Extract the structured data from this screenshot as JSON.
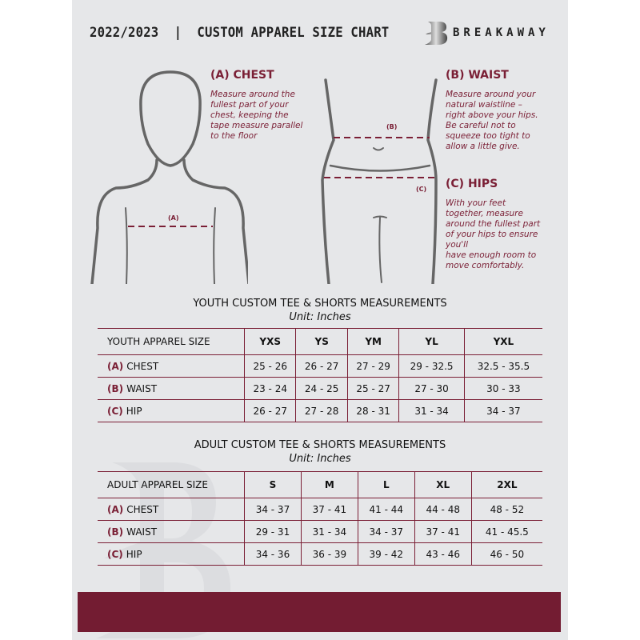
{
  "header": {
    "title": "2022/2023  |  CUSTOM APPAREL SIZE CHART",
    "brand": "BREAKAWAY",
    "logo_letter": "B"
  },
  "colors": {
    "accent": "#7a1f35",
    "background": "#e6e7e9",
    "footer_band": "#731c32"
  },
  "guide": {
    "chest": {
      "heading": "(A) CHEST",
      "text": [
        "Measure around the",
        "fullest part of your",
        "chest, keeping the",
        "tape measure parallel",
        "to the floor"
      ],
      "marker": "(A)"
    },
    "waist": {
      "heading": "(B) WAIST",
      "text": [
        "Measure around your",
        "natural waistline –",
        "right above your hips.",
        "Be careful not to",
        "squeeze too tight to",
        "allow a little give."
      ],
      "marker": "(B)"
    },
    "hips": {
      "heading": "(C) HIPS",
      "text": [
        "With your feet",
        "together, measure",
        "around the fullest part",
        "of your hips to ensure",
        "you'll",
        "have enough room to",
        "move comfortably."
      ],
      "marker": "(C)"
    }
  },
  "youth": {
    "title": "YOUTH CUSTOM TEE & SHORTS MEASUREMENTS",
    "unit": "Unit: Inches",
    "header": [
      "YOUTH APPAREL SIZE",
      "YXS",
      "YS",
      "YM",
      "YL",
      "YXL"
    ],
    "rows": [
      {
        "code": "(A)",
        "label": "CHEST",
        "values": [
          "25 - 26",
          "26 - 27",
          "27 - 29",
          "29 - 32.5",
          "32.5 - 35.5"
        ]
      },
      {
        "code": "(B)",
        "label": "WAIST",
        "values": [
          "23 - 24",
          "24 - 25",
          "25 - 27",
          "27 - 30",
          "30 - 33"
        ]
      },
      {
        "code": "(C)",
        "label": "HIP",
        "values": [
          "26 - 27",
          "27 - 28",
          "28 - 31",
          "31 - 34",
          "34 - 37"
        ]
      }
    ]
  },
  "adult": {
    "title": "ADULT CUSTOM TEE & SHORTS MEASUREMENTS",
    "unit": "Unit: Inches",
    "header": [
      "ADULT APPAREL SIZE",
      "S",
      "M",
      "L",
      "XL",
      "2XL"
    ],
    "rows": [
      {
        "code": "(A)",
        "label": "CHEST",
        "values": [
          "34 - 37",
          "37 - 41",
          "41 - 44",
          "44 - 48",
          "48 - 52"
        ]
      },
      {
        "code": "(B)",
        "label": "WAIST",
        "values": [
          "29 - 31",
          "31 - 34",
          "34 - 37",
          "37 - 41",
          "41 - 45.5"
        ]
      },
      {
        "code": "(C)",
        "label": "HIP",
        "values": [
          "34 - 36",
          "36 - 39",
          "39 - 42",
          "43 - 46",
          "46 - 50"
        ]
      }
    ]
  }
}
